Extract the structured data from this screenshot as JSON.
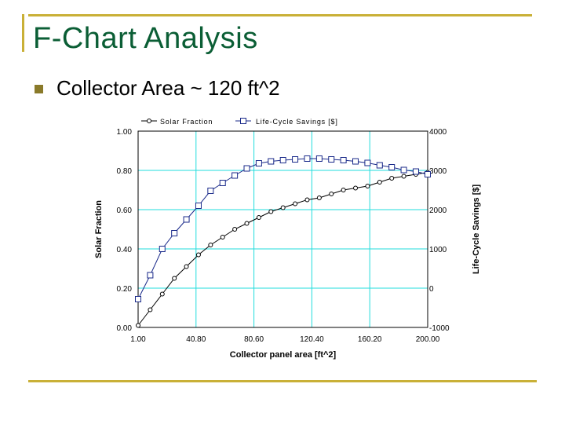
{
  "slide": {
    "title": "F-Chart Analysis",
    "bullet": "Collector Area ~ 120 ft^2"
  },
  "colors": {
    "title": "#0b5e35",
    "frame": "#c9b037",
    "grid": "#22dddd",
    "savings_series": "#1a2a8a",
    "fraction_series": "#000000"
  },
  "chart_data": {
    "type": "line",
    "xlabel": "Collector panel area [ft^2]",
    "ylabel": "Solar Fraction",
    "y2label": "Life-Cycle Savings [$]",
    "xlim": [
      1.0,
      200.0
    ],
    "ylim": [
      0.0,
      1.0
    ],
    "y2lim": [
      -1000,
      4000
    ],
    "x_ticks": [
      "1.00",
      "40.80",
      "80.60",
      "120.40",
      "160.20",
      "200.00"
    ],
    "y_ticks": [
      "0.00",
      "0.20",
      "0.40",
      "0.60",
      "0.80",
      "1.00"
    ],
    "y2_ticks": [
      "-1000",
      "0",
      "1000",
      "2000",
      "3000",
      "4000"
    ],
    "grid": true,
    "legend_position": "top",
    "x": [
      1,
      9.3,
      17.6,
      25.9,
      34.2,
      42.5,
      50.8,
      59.1,
      67.4,
      75.7,
      84,
      92.3,
      100.6,
      108.9,
      117.2,
      125.5,
      133.8,
      142.1,
      150.4,
      158.7,
      167,
      175.3,
      183.6,
      191.9,
      200
    ],
    "series": [
      {
        "name": "Solar Fraction",
        "axis": "left",
        "values": [
          0.01,
          0.09,
          0.17,
          0.25,
          0.31,
          0.37,
          0.42,
          0.46,
          0.5,
          0.53,
          0.56,
          0.59,
          0.61,
          0.63,
          0.65,
          0.66,
          0.68,
          0.7,
          0.71,
          0.72,
          0.74,
          0.76,
          0.77,
          0.78,
          0.79
        ]
      },
      {
        "name": "Life-Cycle Savings [$]",
        "axis": "right",
        "values": [
          -280,
          330,
          1000,
          1400,
          1750,
          2100,
          2480,
          2680,
          2870,
          3050,
          3180,
          3230,
          3260,
          3280,
          3300,
          3300,
          3280,
          3260,
          3230,
          3190,
          3130,
          3080,
          3010,
          2970,
          2900
        ]
      }
    ]
  }
}
